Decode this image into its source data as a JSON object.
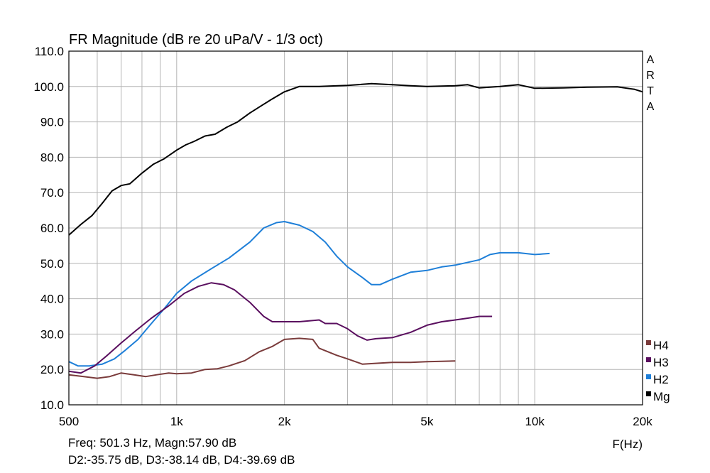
{
  "chart_data": {
    "type": "line",
    "title": "FR Magnitude (dB re 20 uPa/V - 1/3 oct)",
    "xlabel": "F(Hz)",
    "ylabel": "",
    "x_scale": "log",
    "xlim": [
      500,
      20000
    ],
    "ylim": [
      10,
      110
    ],
    "grid": true,
    "legend_position": "bottom-right, outside plot",
    "brand_label": [
      "A",
      "R",
      "T",
      "A"
    ],
    "y_ticks": [
      10,
      20,
      30,
      40,
      50,
      60,
      70,
      80,
      90,
      100,
      110
    ],
    "y_tick_labels": [
      "10.0",
      "20.0",
      "30.0",
      "40.0",
      "50.0",
      "60.0",
      "70.0",
      "80.0",
      "90.0",
      "100.0",
      "110.0"
    ],
    "x_ticks": [
      500,
      1000,
      2000,
      5000,
      10000,
      20000
    ],
    "x_tick_labels": [
      "500",
      "1k",
      "2k",
      "5k",
      "10k",
      "20k"
    ],
    "legend": [
      {
        "name": "H4",
        "color": "#7a3b3b"
      },
      {
        "name": "H3",
        "color": "#5a0f5f"
      },
      {
        "name": "H2",
        "color": "#1e7fd8"
      },
      {
        "name": "Mg",
        "color": "#000000"
      }
    ],
    "series": [
      {
        "name": "Mg",
        "color": "#000000",
        "points": [
          [
            500,
            58
          ],
          [
            540,
            61
          ],
          [
            580,
            63.5
          ],
          [
            620,
            67
          ],
          [
            660,
            70.5
          ],
          [
            700,
            72
          ],
          [
            740,
            72.5
          ],
          [
            800,
            75.5
          ],
          [
            860,
            78
          ],
          [
            920,
            79.5
          ],
          [
            1000,
            82
          ],
          [
            1060,
            83.5
          ],
          [
            1120,
            84.5
          ],
          [
            1200,
            86
          ],
          [
            1280,
            86.5
          ],
          [
            1380,
            88.5
          ],
          [
            1480,
            90
          ],
          [
            1600,
            92.5
          ],
          [
            1720,
            94.5
          ],
          [
            1850,
            96.5
          ],
          [
            2000,
            98.5
          ],
          [
            2200,
            100
          ],
          [
            2500,
            100
          ],
          [
            3000,
            100.3
          ],
          [
            3500,
            100.8
          ],
          [
            4000,
            100.5
          ],
          [
            4500,
            100.2
          ],
          [
            5000,
            100
          ],
          [
            6000,
            100.2
          ],
          [
            6500,
            100.5
          ],
          [
            7000,
            99.6
          ],
          [
            8000,
            100
          ],
          [
            9000,
            100.5
          ],
          [
            10000,
            99.5
          ],
          [
            12000,
            99.6
          ],
          [
            14000,
            99.8
          ],
          [
            17000,
            99.9
          ],
          [
            19000,
            99.2
          ],
          [
            20000,
            98.5
          ]
        ]
      },
      {
        "name": "H2",
        "color": "#1e7fd8",
        "points": [
          [
            500,
            22.2
          ],
          [
            530,
            21
          ],
          [
            570,
            21
          ],
          [
            620,
            21.5
          ],
          [
            670,
            23
          ],
          [
            720,
            25.5
          ],
          [
            780,
            28.5
          ],
          [
            850,
            33
          ],
          [
            920,
            37
          ],
          [
            1000,
            41.5
          ],
          [
            1100,
            45
          ],
          [
            1250,
            48.5
          ],
          [
            1400,
            51.5
          ],
          [
            1600,
            56
          ],
          [
            1750,
            60
          ],
          [
            1900,
            61.5
          ],
          [
            2000,
            61.8
          ],
          [
            2200,
            60.8
          ],
          [
            2400,
            59
          ],
          [
            2600,
            56
          ],
          [
            2800,
            52
          ],
          [
            3000,
            49
          ],
          [
            3300,
            46
          ],
          [
            3500,
            44
          ],
          [
            3700,
            44
          ],
          [
            4000,
            45.5
          ],
          [
            4500,
            47.5
          ],
          [
            5000,
            48
          ],
          [
            5500,
            49
          ],
          [
            6000,
            49.5
          ],
          [
            7000,
            51
          ],
          [
            7500,
            52.5
          ],
          [
            8000,
            53
          ],
          [
            9000,
            53
          ],
          [
            10000,
            52.5
          ],
          [
            11000,
            52.8
          ]
        ]
      },
      {
        "name": "H3",
        "color": "#5a0f5f",
        "points": [
          [
            500,
            19.5
          ],
          [
            540,
            19
          ],
          [
            590,
            21
          ],
          [
            640,
            24
          ],
          [
            700,
            27.5
          ],
          [
            770,
            31
          ],
          [
            850,
            34.5
          ],
          [
            950,
            38
          ],
          [
            1050,
            41.5
          ],
          [
            1150,
            43.5
          ],
          [
            1250,
            44.5
          ],
          [
            1350,
            44
          ],
          [
            1450,
            42.5
          ],
          [
            1600,
            39
          ],
          [
            1750,
            35
          ],
          [
            1850,
            33.5
          ],
          [
            2000,
            33.5
          ],
          [
            2200,
            33.5
          ],
          [
            2500,
            34
          ],
          [
            2600,
            33
          ],
          [
            2800,
            33
          ],
          [
            3000,
            31.5
          ],
          [
            3200,
            29.5
          ],
          [
            3400,
            28.3
          ],
          [
            3600,
            28.7
          ],
          [
            4000,
            29
          ],
          [
            4500,
            30.5
          ],
          [
            5000,
            32.5
          ],
          [
            5500,
            33.5
          ],
          [
            6000,
            34
          ],
          [
            6500,
            34.5
          ],
          [
            7000,
            35
          ],
          [
            7600,
            35
          ]
        ]
      },
      {
        "name": "H4",
        "color": "#7a3b3b",
        "points": [
          [
            500,
            18.5
          ],
          [
            550,
            18
          ],
          [
            600,
            17.5
          ],
          [
            650,
            18
          ],
          [
            700,
            19
          ],
          [
            760,
            18.5
          ],
          [
            820,
            18
          ],
          [
            880,
            18.5
          ],
          [
            950,
            19
          ],
          [
            1000,
            18.8
          ],
          [
            1100,
            19
          ],
          [
            1200,
            20
          ],
          [
            1300,
            20.2
          ],
          [
            1400,
            21
          ],
          [
            1550,
            22.5
          ],
          [
            1700,
            25
          ],
          [
            1850,
            26.5
          ],
          [
            2000,
            28.5
          ],
          [
            2200,
            28.8
          ],
          [
            2400,
            28.5
          ],
          [
            2500,
            26
          ],
          [
            2800,
            24
          ],
          [
            3000,
            23
          ],
          [
            3300,
            21.5
          ],
          [
            3700,
            21.8
          ],
          [
            4000,
            22
          ],
          [
            4500,
            22
          ],
          [
            5000,
            22.2
          ],
          [
            5500,
            22.3
          ],
          [
            6000,
            22.4
          ]
        ]
      }
    ]
  },
  "footer": {
    "line1": "Freq: 501.3 Hz, Magn:57.90 dB",
    "line2": "D2:-35.75 dB, D3:-38.14 dB, D4:-39.69 dB"
  }
}
